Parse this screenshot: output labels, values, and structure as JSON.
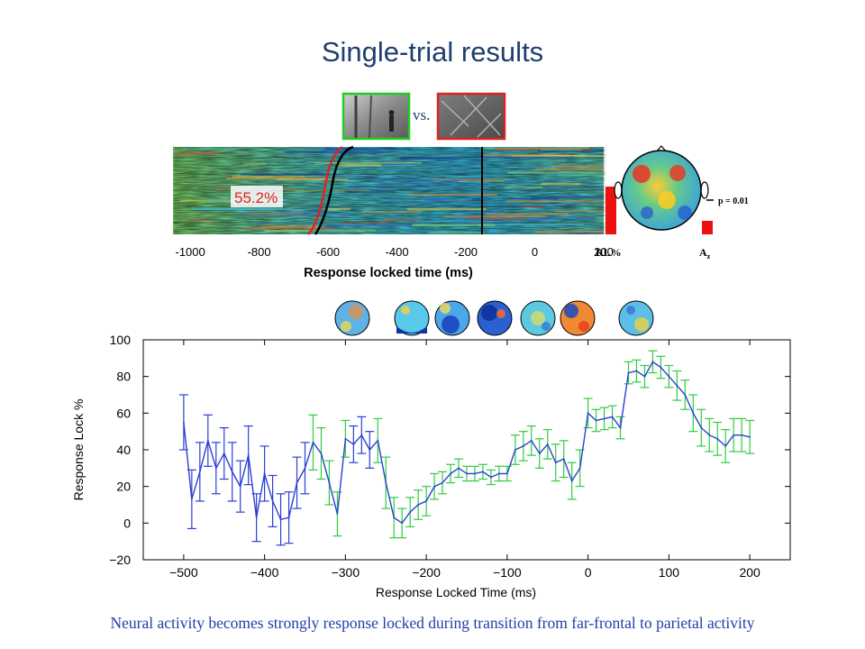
{
  "title": "Single-trial results",
  "caption": "Neural activity becomes strongly response locked during transition from far-frontal to parietal activity",
  "stimuli": {
    "vs_label": "vs.",
    "face_border": "#22cc22",
    "nonface_border": "#dd2222"
  },
  "raster": {
    "percent_label": "55.2%",
    "xlabel": "Response locked time (ms)",
    "xticks": [
      -1000,
      -800,
      -600,
      -400,
      -200,
      0,
      200
    ],
    "xrange": [
      -1050,
      200
    ],
    "rl_label": "RL%",
    "az_label": "A",
    "az_sub": "z",
    "p_label": "p = 0.01"
  },
  "chart_data": {
    "type": "line",
    "xlabel": "Response Locked Time (ms)",
    "ylabel": "Response Lock %",
    "xlim": [
      -550,
      250
    ],
    "ylim": [
      -20,
      100
    ],
    "xticks": [
      -500,
      -400,
      -300,
      -200,
      -100,
      0,
      100,
      200
    ],
    "yticks": [
      -20,
      0,
      20,
      40,
      60,
      80,
      100
    ],
    "series": [
      {
        "x": [
          -500,
          -490,
          -480,
          -470,
          -460,
          -450,
          -440,
          -430,
          -420,
          -410,
          -400,
          -390,
          -380,
          -370,
          -360,
          -350,
          -340,
          -330,
          -320,
          -310,
          -300,
          -290,
          -280,
          -270,
          -260,
          -250,
          -240,
          -230,
          -220,
          -210,
          -200,
          -190,
          -180,
          -170,
          -160,
          -150,
          -140,
          -130,
          -120,
          -110,
          -100,
          -90,
          -80,
          -70,
          -60,
          -50,
          -40,
          -30,
          -20,
          -10,
          0,
          10,
          20,
          30,
          40,
          50,
          60,
          70,
          80,
          90,
          100,
          110,
          120,
          130,
          140,
          150,
          160,
          170,
          180,
          190,
          200
        ],
        "y": [
          55,
          13,
          28,
          45,
          30,
          38,
          28,
          20,
          37,
          3,
          27,
          12,
          2,
          3,
          22,
          30,
          44,
          38,
          22,
          5,
          46,
          43,
          48,
          40,
          45,
          22,
          3,
          0,
          6,
          10,
          12,
          20,
          22,
          27,
          30,
          27,
          27,
          28,
          25,
          27,
          27,
          40,
          42,
          45,
          38,
          43,
          33,
          35,
          23,
          30,
          60,
          56,
          57,
          58,
          52,
          82,
          83,
          80,
          88,
          85,
          80,
          75,
          70,
          60,
          52,
          48,
          46,
          42,
          48,
          48,
          47
        ],
        "err": [
          15,
          16,
          16,
          14,
          14,
          14,
          16,
          14,
          16,
          13,
          15,
          14,
          14,
          14,
          14,
          14,
          15,
          14,
          12,
          12,
          10,
          10,
          10,
          10,
          12,
          14,
          11,
          8,
          8,
          8,
          8,
          7,
          6,
          5,
          5,
          4,
          4,
          4,
          4,
          4,
          4,
          8,
          8,
          8,
          8,
          8,
          10,
          10,
          10,
          10,
          8,
          6,
          6,
          6,
          6,
          6,
          6,
          6,
          6,
          6,
          6,
          8,
          8,
          10,
          10,
          9,
          9,
          9,
          9,
          9,
          9
        ],
        "green_x": [
          -340,
          -330,
          -320,
          -310,
          -300,
          -260,
          -250,
          -240,
          -230,
          -220,
          -210,
          -200,
          -190,
          -180,
          -170,
          -160,
          -150,
          -140,
          -130,
          -120,
          -110,
          -100,
          -90,
          -80,
          -70,
          -60,
          -50,
          -40,
          -30,
          -20,
          -10,
          0,
          10,
          20,
          30,
          40,
          50,
          60,
          70,
          80,
          90,
          100,
          110,
          120,
          130,
          140,
          150,
          160,
          170,
          180,
          190,
          200
        ],
        "color": "#2a3fd4",
        "err_color_low": "#2a3fd4",
        "err_color_high": "#2ecc40"
      }
    ]
  }
}
